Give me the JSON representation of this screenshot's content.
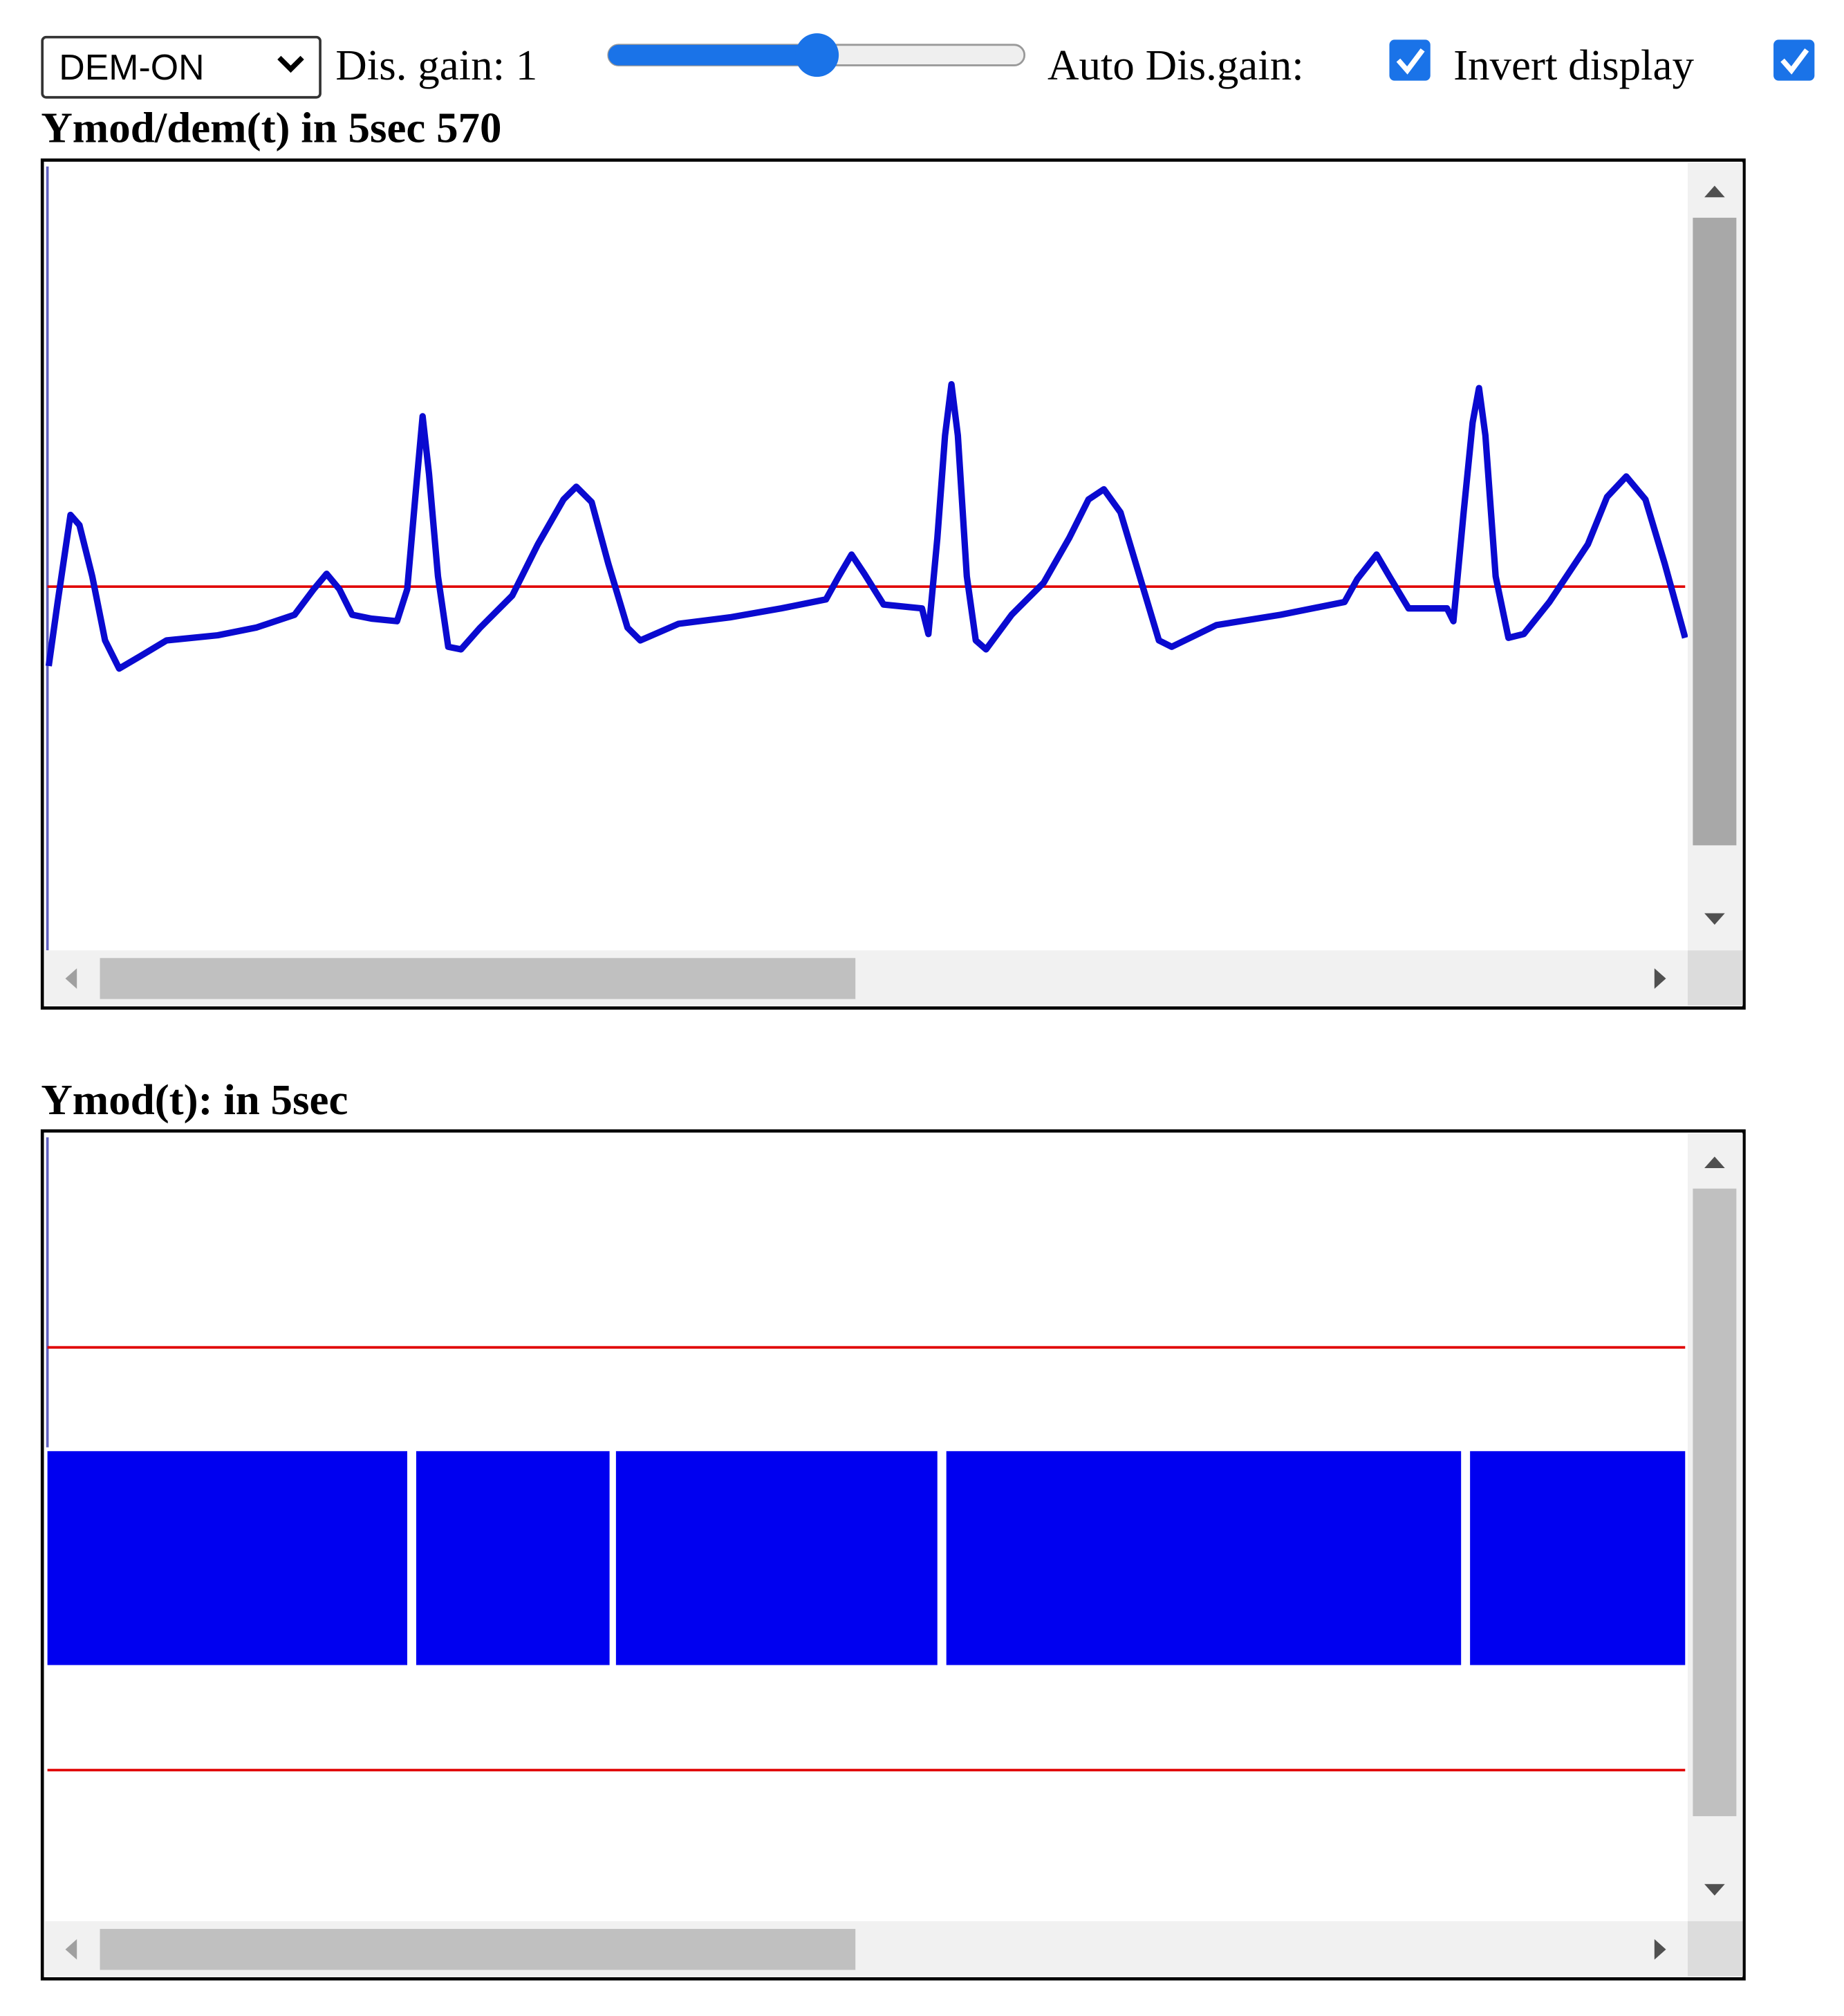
{
  "controls": {
    "mode_select": "DEM-ON",
    "gain_label": "Dis. gain: 1",
    "auto_gain_label": "Auto Dis.gain:",
    "invert_label": "Invert display"
  },
  "panels": [
    {
      "title": "Ymod/dem(t) in 5sec 570"
    },
    {
      "title": "Ymod(t): in 5sec"
    }
  ]
}
